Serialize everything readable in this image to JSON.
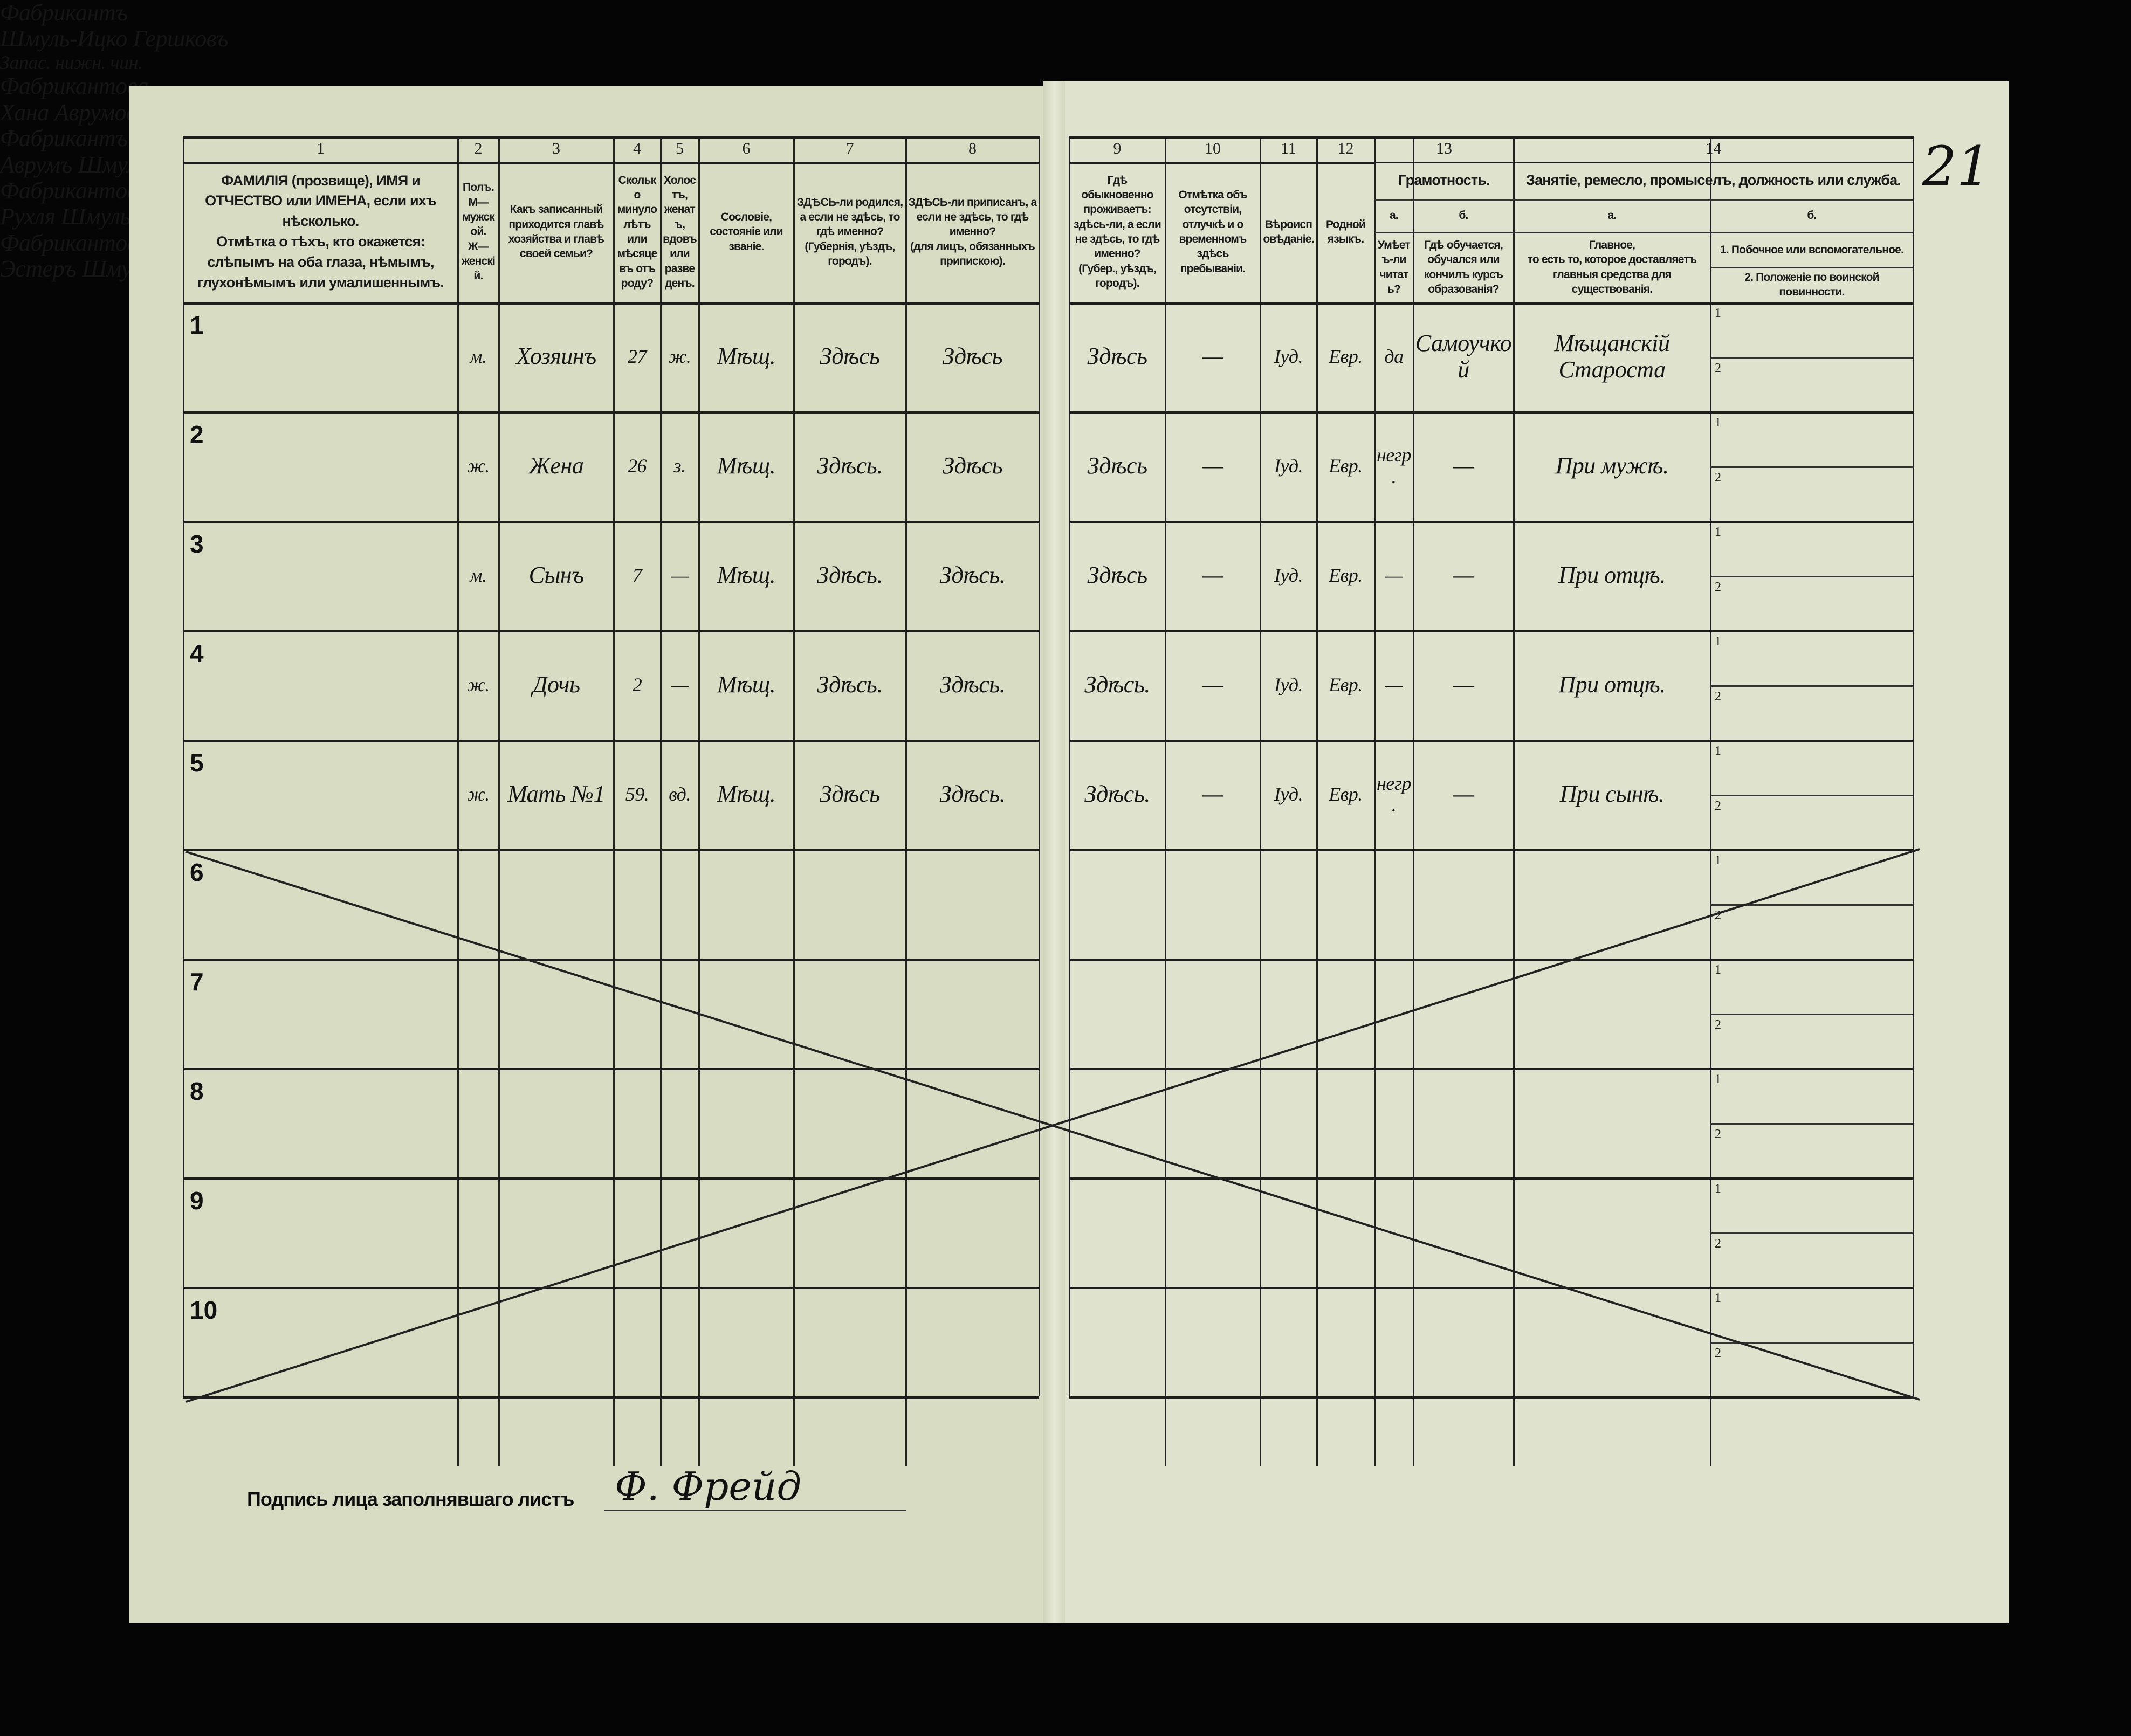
{
  "page_number": "21",
  "header": {
    "columns": [
      {
        "num": "1",
        "text": "ФАМИЛІЯ (прозвище), ИМЯ и ОТЧЕСТВО или ИМЕНА, если ихъ нѣсколько.\nОтмѣтка о тѣхъ, кто окажется: слѣпымъ на оба глаза, нѣмымъ, глухонѣмымъ или умалишеннымъ."
      },
      {
        "num": "2",
        "text": "Полъ.\nМ—мужской.\nЖ—женскій."
      },
      {
        "num": "3",
        "text": "Какъ записанный приходится главѣ хозяйства и главѣ своей семьи?"
      },
      {
        "num": "4",
        "text": "Сколько минуло лѣтъ или мѣсяцевъ отъ роду?"
      },
      {
        "num": "5",
        "text": "Холостъ, женатъ, вдовъ или разведенъ."
      },
      {
        "num": "6",
        "text": "Сословіе, состояніе или званіе."
      },
      {
        "num": "7",
        "text": "ЗДѢСЬ-ли родился, а если не здѣсь, то гдѣ именно?\n(Губернія, уѣздъ, городъ)."
      },
      {
        "num": "8",
        "text": "ЗДѢСЬ-ли приписанъ, а если не здѣсь, то гдѣ именно?\n(для лицъ, обязанныхъ припискою)."
      },
      {
        "num": "9",
        "text": "Гдѣ обыкновенно проживаетъ: здѣсь-ли, а если не здѣсь, то гдѣ именно?\n(Губер., уѣздъ, городъ)."
      },
      {
        "num": "10",
        "text": "Отмѣтка объ отсутствіи, отлучкѣ и о временномъ здѣсь пребываніи."
      },
      {
        "num": "11",
        "text": "Вѣроисповѣданіе."
      },
      {
        "num": "12",
        "text": "Родной языкъ."
      }
    ],
    "literacy": {
      "num": "13",
      "title": "Грамотность.",
      "a_letter": "а.",
      "a_text": "Умѣетъ-ли читать?",
      "b_letter": "б.",
      "b_text": "Гдѣ обучается, обучался или кончилъ курсъ образованія?"
    },
    "occupation": {
      "num": "14",
      "title": "Занятіе, ремесло, промыселъ, должность или служба.",
      "a_letter": "а.",
      "a_text": "Главное,\nто есть то, которое доставляетъ главныя средства для существованія.",
      "b_letter": "б.",
      "b1_text": "1. Побочное или вспомогательное.",
      "b2_text": "2. Положеніе по воинской повинности."
    }
  },
  "rows": [
    {
      "n": "1",
      "surname": "Фабрикантъ",
      "given": "Шмуль-Ицко Гершковъ",
      "sex": "м.",
      "relation": "Хозяинъ",
      "age": "27",
      "marital": "ж.",
      "estate": "Мѣщ.",
      "born": "Здѣсь",
      "registered": "Здѣсь",
      "resides": "Здѣсь",
      "absence": "—",
      "religion": "Iуд.",
      "language": "Евр.",
      "reads": "да",
      "school": "Самоучкой",
      "occupation": "Мѣщанскій Староста",
      "secondary": "",
      "military": "Запас. нижн. чин."
    },
    {
      "n": "2",
      "surname": "Фабрикантова",
      "given": "Хана Аврумова",
      "sex": "ж.",
      "relation": "Жена",
      "age": "26",
      "marital": "з.",
      "estate": "Мѣщ.",
      "born": "Здѣсь.",
      "registered": "Здѣсь",
      "resides": "Здѣсь",
      "absence": "—",
      "religion": "Iуд.",
      "language": "Евр.",
      "reads": "негр.",
      "school": "—",
      "occupation": "При мужѣ.",
      "secondary": "",
      "military": ""
    },
    {
      "n": "3",
      "surname": "Фабрикантъ",
      "given": "Аврумъ Шмуль-Ицковъ",
      "sex": "м.",
      "relation": "Сынъ",
      "age": "7",
      "marital": "—",
      "estate": "Мѣщ.",
      "born": "Здѣсь.",
      "registered": "Здѣсь.",
      "resides": "Здѣсь",
      "absence": "—",
      "religion": "Iуд.",
      "language": "Евр.",
      "reads": "—",
      "school": "—",
      "occupation": "При отцѣ.",
      "secondary": "",
      "military": ""
    },
    {
      "n": "4",
      "surname": "Фабрикантова",
      "given": "Рухля Шмуль-Ицкова",
      "sex": "ж.",
      "relation": "Дочь",
      "age": "2",
      "marital": "—",
      "estate": "Мѣщ.",
      "born": "Здѣсь.",
      "registered": "Здѣсь.",
      "resides": "Здѣсь.",
      "absence": "—",
      "religion": "Iуд.",
      "language": "Евр.",
      "reads": "—",
      "school": "—",
      "occupation": "При отцѣ.",
      "secondary": "",
      "military": ""
    },
    {
      "n": "5",
      "surname": "Фабрикантова",
      "given": "Эстеръ Шмулева",
      "sex": "ж.",
      "relation": "Мать №1",
      "age": "59.",
      "marital": "вд.",
      "estate": "Мѣщ.",
      "born": "Здѣсь",
      "registered": "Здѣсь.",
      "resides": "Здѣсь.",
      "absence": "—",
      "religion": "Iуд.",
      "language": "Евр.",
      "reads": "негр.",
      "school": "—",
      "occupation": "При сынѣ.",
      "secondary": "",
      "military": ""
    },
    {
      "n": "6"
    },
    {
      "n": "7"
    },
    {
      "n": "8"
    },
    {
      "n": "9"
    },
    {
      "n": "10"
    }
  ],
  "sub_labels": {
    "one": "1",
    "two": "2"
  },
  "signature": {
    "label": "Подпись лица заполнявшаго листъ",
    "signature_text": "Ф. Фрейд"
  },
  "colors": {
    "paper": "#dfe3cd",
    "ink": "#151515",
    "background": "#050505"
  }
}
